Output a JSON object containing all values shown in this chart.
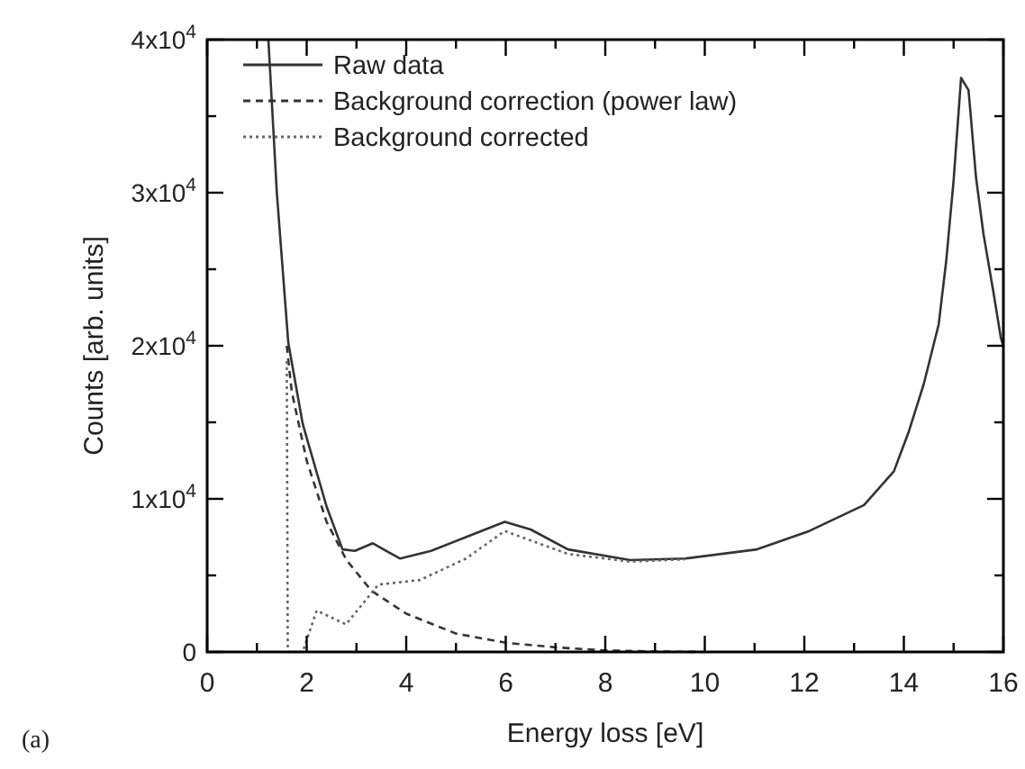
{
  "chart_data": {
    "type": "line",
    "xlabel": "Energy loss [eV]",
    "ylabel": "Counts [arb. units]",
    "annotations": [
      "(a)"
    ],
    "xlim": [
      0,
      16
    ],
    "ylim": [
      0,
      40000
    ],
    "xticks": [
      0,
      {
        "value": 1,
        "label": null
      },
      2,
      {
        "value": 3,
        "label": null
      },
      4,
      {
        "value": 5,
        "label": null
      },
      6,
      {
        "value": 7,
        "label": null
      },
      8,
      {
        "value": 9,
        "label": null
      },
      10,
      {
        "value": 11,
        "label": null
      },
      12,
      {
        "value": 13,
        "label": null
      },
      14,
      {
        "value": 15,
        "label": null
      },
      16
    ],
    "yticks": [
      0,
      {
        "value": 5000,
        "label": null
      },
      {
        "value": 10000,
        "label": "1x10$^{4}$"
      },
      {
        "value": 15000,
        "label": null
      },
      {
        "value": 20000,
        "label": "2x10$^{4}$"
      },
      {
        "value": 25000,
        "label": null
      },
      {
        "value": 30000,
        "label": "3x10$^{4}$"
      },
      {
        "value": 35000,
        "label": null
      },
      {
        "value": 40000,
        "label": "4x10$^{4}$"
      }
    ],
    "grid": false,
    "legend": "top left",
    "marker": "none",
    "series": [
      {
        "name": "Raw data",
        "color": "#333333",
        "line_style": "solid",
        "x": [
          1.23,
          1.4,
          1.63,
          1.92,
          2.07,
          2.4,
          2.72,
          2.97,
          3.33,
          3.6,
          3.88,
          4.5,
          5.2,
          5.98,
          6.5,
          7.25,
          8.5,
          9.6,
          11.05,
          12.1,
          13.2,
          13.8,
          14.1,
          14.4,
          14.7,
          14.85,
          15.0,
          15.15,
          15.3,
          15.45,
          15.6,
          15.8,
          15.95,
          16
        ],
        "values": [
          40000,
          30000,
          20200,
          14900,
          13200,
          9500,
          6700,
          6600,
          7100,
          6600,
          6100,
          6600,
          7500,
          8500,
          8000,
          6700,
          6000,
          6100,
          6700,
          7900,
          9600,
          11800,
          14400,
          17500,
          21400,
          25500,
          30800,
          37500,
          36700,
          31000,
          27300,
          23500,
          20500,
          20000
        ]
      },
      {
        "name": "Background correction (power law)",
        "color": "#333333",
        "line_style": "dashed",
        "x": [
          1.6,
          1.7,
          2.0,
          2.4,
          2.8,
          3.3,
          4,
          5,
          6,
          7,
          8,
          9,
          10
        ],
        "values": [
          20000,
          17000,
          12500,
          8500,
          6000,
          4000,
          2500,
          1200,
          600,
          300,
          100,
          30,
          0
        ]
      },
      {
        "name": "Background corrected",
        "color": "#666666",
        "line_style": "dotted",
        "x": [
          1.6,
          1.62,
          1.92,
          2.2,
          2.79,
          3.44,
          4.28,
          5.2,
          5.98,
          7.25,
          8.5,
          9.6
        ],
        "values": [
          19000,
          0,
          0,
          2700,
          1800,
          4400,
          4700,
          6100,
          7900,
          6400,
          5900,
          6050
        ]
      }
    ]
  }
}
